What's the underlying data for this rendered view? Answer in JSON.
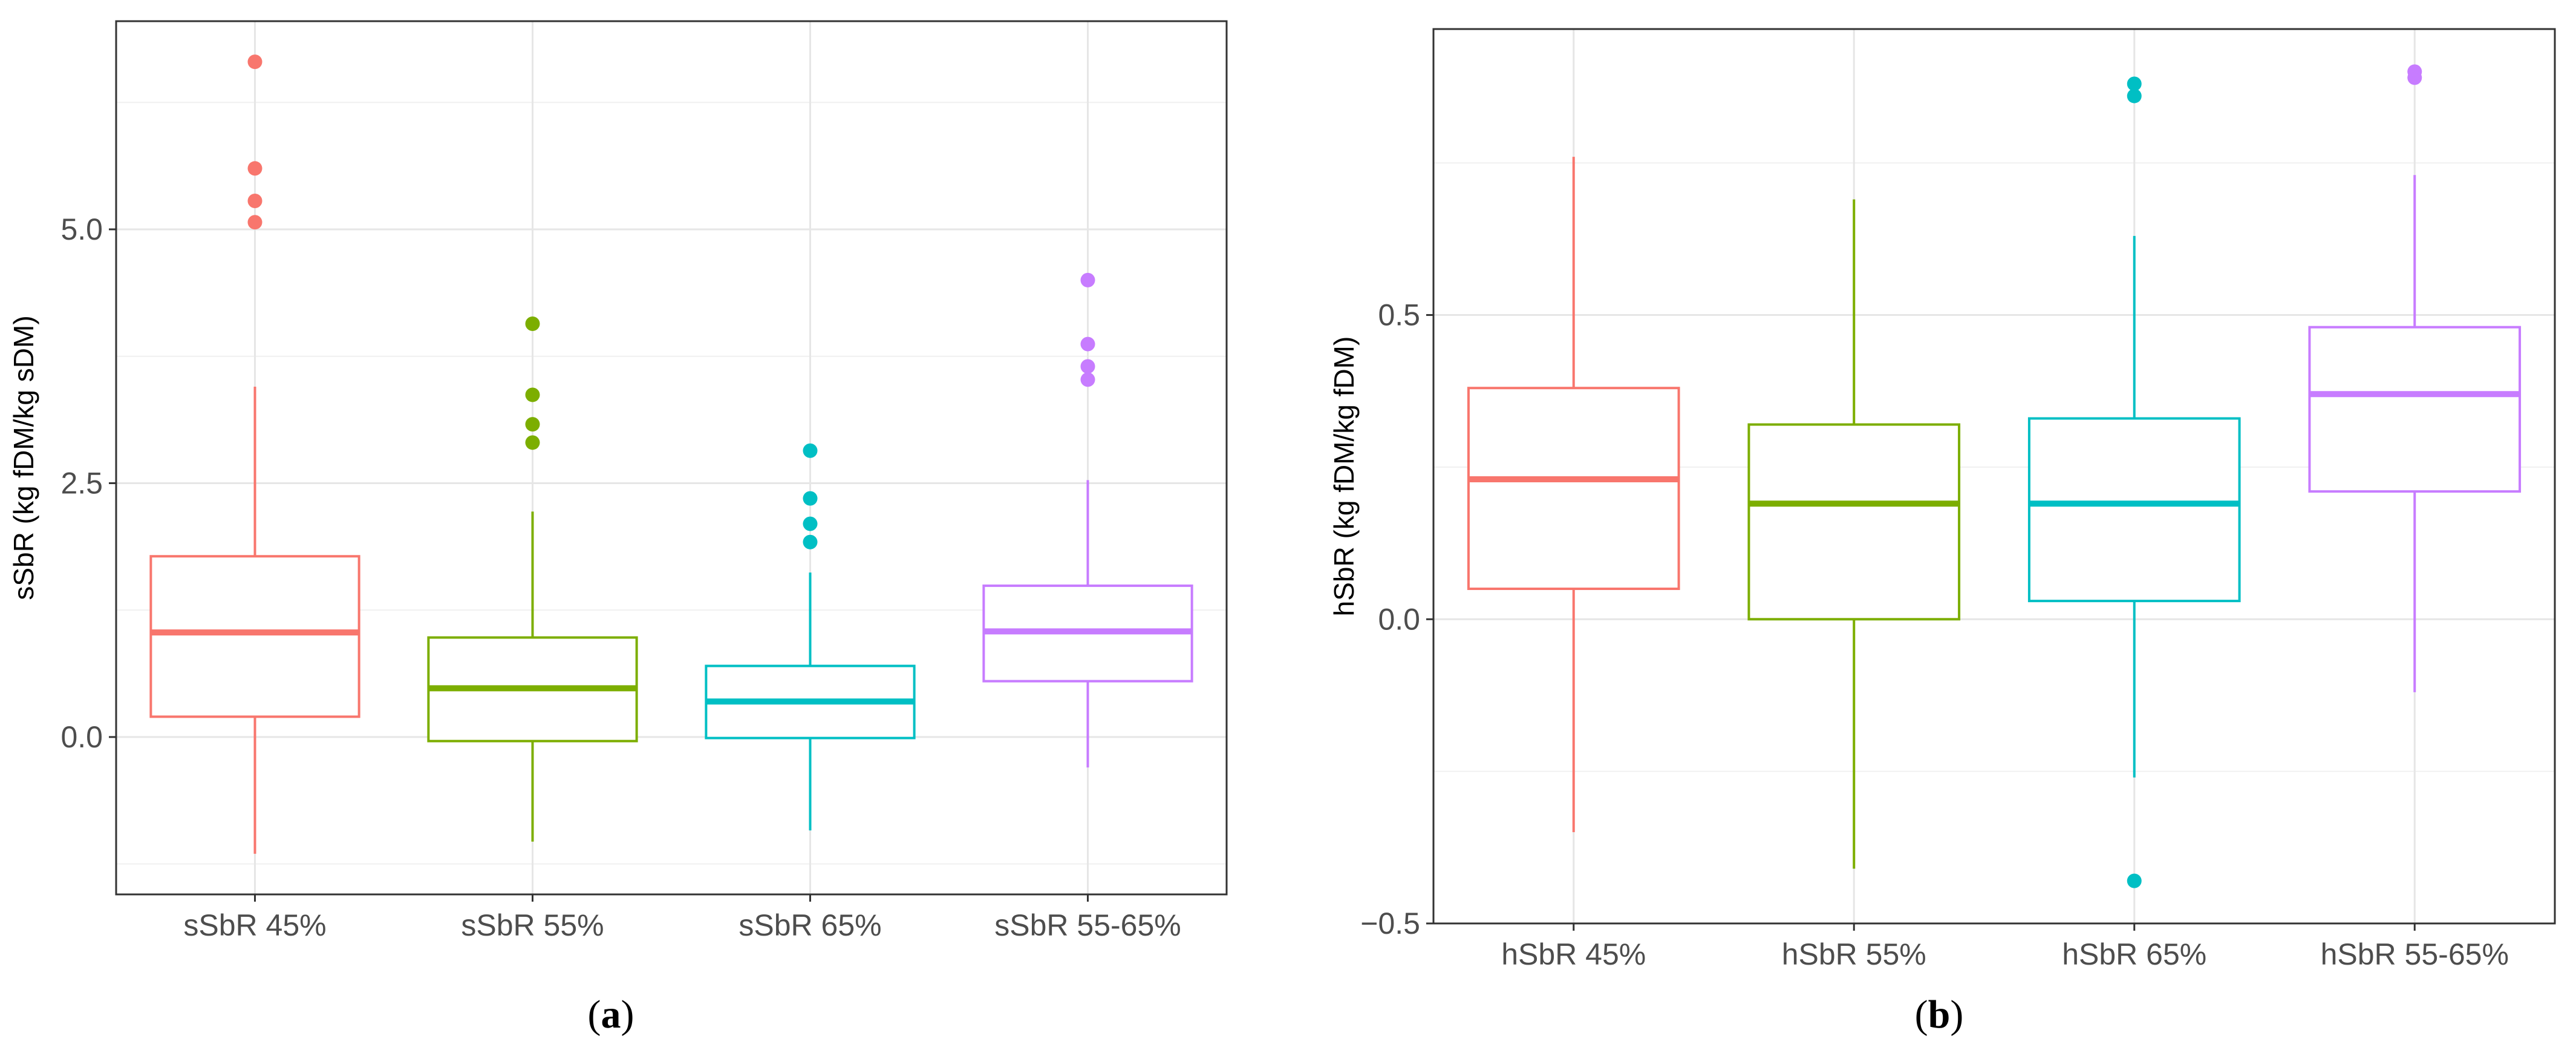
{
  "chart_data": [
    {
      "type": "box",
      "panel_label": "(a)",
      "panel_letter": "a",
      "ylabel": "sSbR (kg fDM/kg sDM)",
      "xlabel": "",
      "ylim": [
        -1.55,
        7.05
      ],
      "yticks": [
        0.0,
        2.5,
        5.0
      ],
      "ytick_labels": [
        "0.0",
        "2.5",
        "5.0"
      ],
      "ygrid_minor": [
        -1.25,
        1.25,
        3.75,
        6.25
      ],
      "grid": true,
      "legend": "none",
      "categories": [
        "sSbR 45%",
        "sSbR 55%",
        "sSbR 65%",
        "sSbR 55-65%"
      ],
      "colors": [
        "#F8766D",
        "#7CAE00",
        "#00BFC4",
        "#C77CFF"
      ],
      "boxes": [
        {
          "q1": 0.2,
          "median": 1.03,
          "q3": 1.78,
          "whisker_low": -1.15,
          "whisker_high": 3.45,
          "outliers": [
            5.07,
            5.28,
            5.6,
            6.65
          ]
        },
        {
          "q1": -0.04,
          "median": 0.48,
          "q3": 0.98,
          "whisker_low": -1.03,
          "whisker_high": 2.22,
          "outliers": [
            2.9,
            3.08,
            3.37,
            4.07
          ]
        },
        {
          "q1": -0.01,
          "median": 0.35,
          "q3": 0.7,
          "whisker_low": -0.92,
          "whisker_high": 1.62,
          "outliers": [
            1.92,
            2.1,
            2.35,
            2.82
          ]
        },
        {
          "q1": 0.55,
          "median": 1.04,
          "q3": 1.49,
          "whisker_low": -0.3,
          "whisker_high": 2.53,
          "outliers": [
            3.52,
            3.65,
            3.87,
            4.5
          ]
        }
      ]
    },
    {
      "type": "box",
      "panel_label": "(b)",
      "panel_letter": "b",
      "ylabel": "hSbR (kg fDM/kg fDM)",
      "xlabel": "",
      "ylim": [
        -0.5,
        0.97
      ],
      "yticks": [
        -0.5,
        0.0,
        0.5
      ],
      "ytick_labels": [
        "−0.5",
        "0.0",
        "0.5"
      ],
      "ygrid_minor": [
        -0.25,
        0.25,
        0.75
      ],
      "grid": true,
      "legend": "none",
      "categories": [
        "hSbR 45%",
        "hSbR 55%",
        "hSbR 65%",
        "hSbR 55-65%"
      ],
      "colors": [
        "#F8766D",
        "#7CAE00",
        "#00BFC4",
        "#C77CFF"
      ],
      "boxes": [
        {
          "q1": 0.05,
          "median": 0.23,
          "q3": 0.38,
          "whisker_low": -0.35,
          "whisker_high": 0.76,
          "outliers": []
        },
        {
          "q1": 0.0,
          "median": 0.19,
          "q3": 0.32,
          "whisker_low": -0.41,
          "whisker_high": 0.69,
          "outliers": []
        },
        {
          "q1": 0.03,
          "median": 0.19,
          "q3": 0.33,
          "whisker_low": -0.26,
          "whisker_high": 0.63,
          "outliers": [
            -0.43,
            0.86,
            0.88
          ]
        },
        {
          "q1": 0.21,
          "median": 0.37,
          "q3": 0.48,
          "whisker_low": -0.12,
          "whisker_high": 0.73,
          "outliers": [
            0.89,
            0.9
          ]
        }
      ]
    }
  ]
}
